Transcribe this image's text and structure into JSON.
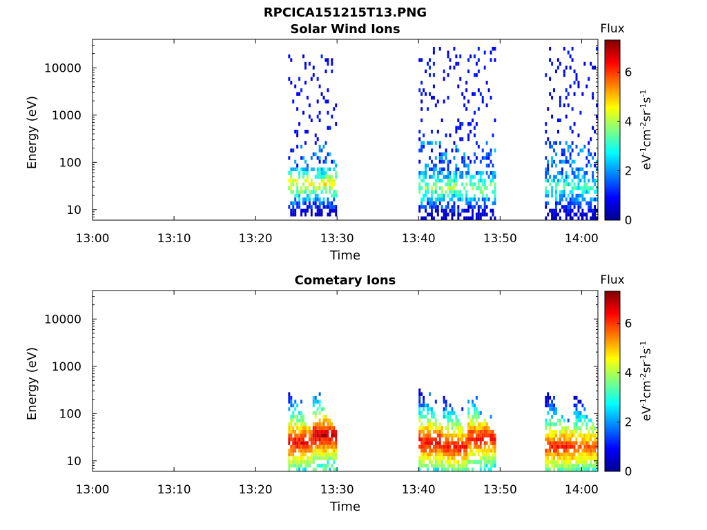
{
  "figure": {
    "title": "RPCICA151215T13.PNG"
  },
  "chart_data": [
    {
      "type": "heatmap",
      "title": "Solar Wind Ions",
      "xlabel": "Time",
      "ylabel": "Energy (eV)",
      "x_ticks": [
        "13:00",
        "13:10",
        "13:20",
        "13:30",
        "13:40",
        "13:50",
        "14:00"
      ],
      "x_range_minutes": [
        0,
        62
      ],
      "y_scale": "log",
      "y_range": [
        6,
        40000
      ],
      "y_ticks": [
        10,
        100,
        1000,
        10000
      ],
      "y_tick_labels": [
        "10",
        "100",
        "1000",
        "10000"
      ],
      "colorbar": {
        "label_top": "Flux",
        "unit": "eV-1cm-2sr-1s-1",
        "range": [
          0,
          7.3
        ],
        "ticks": [
          0,
          2,
          4,
          6
        ],
        "colormap": "jet"
      },
      "bursts": [
        {
          "start_min": 24.0,
          "end_min": 30.0,
          "peak_energy_eV": 35,
          "peak_level": 4.6,
          "high_tail_eV": 20000
        },
        {
          "start_min": 40.0,
          "end_min": 49.5,
          "peak_energy_eV": 30,
          "peak_level": 3.8,
          "high_tail_eV": 30000
        },
        {
          "start_min": 55.5,
          "end_min": 62.0,
          "peak_energy_eV": 30,
          "peak_level": 3.2,
          "high_tail_eV": 30000
        }
      ]
    },
    {
      "type": "heatmap",
      "title": "Cometary Ions",
      "xlabel": "Time",
      "ylabel": "Energy (eV)",
      "x_ticks": [
        "13:00",
        "13:10",
        "13:20",
        "13:30",
        "13:40",
        "13:50",
        "14:00"
      ],
      "x_range_minutes": [
        0,
        62
      ],
      "y_scale": "log",
      "y_range": [
        6,
        40000
      ],
      "y_ticks": [
        10,
        100,
        1000,
        10000
      ],
      "y_tick_labels": [
        "10",
        "100",
        "1000",
        "10000"
      ],
      "colorbar": {
        "label_top": "Flux",
        "unit": "eV-1cm-2sr-1s-1",
        "range": [
          0,
          7.3
        ],
        "ticks": [
          0,
          2,
          4,
          6
        ],
        "colormap": "jet"
      },
      "bursts": [
        {
          "start_min": 24.0,
          "end_min": 27.0,
          "peak_energy_eV": 25,
          "peak_level": 6.5,
          "high_tail_eV": 300
        },
        {
          "start_min": 27.0,
          "end_min": 30.0,
          "peak_energy_eV": 35,
          "peak_level": 6.8,
          "high_tail_eV": 300
        },
        {
          "start_min": 40.0,
          "end_min": 43.0,
          "peak_energy_eV": 25,
          "peak_level": 6.5,
          "high_tail_eV": 350
        },
        {
          "start_min": 43.0,
          "end_min": 46.0,
          "peak_energy_eV": 20,
          "peak_level": 6.3,
          "high_tail_eV": 250
        },
        {
          "start_min": 46.0,
          "end_min": 49.5,
          "peak_energy_eV": 30,
          "peak_level": 6.4,
          "high_tail_eV": 250
        },
        {
          "start_min": 55.5,
          "end_min": 59.0,
          "peak_energy_eV": 20,
          "peak_level": 6.2,
          "high_tail_eV": 300
        },
        {
          "start_min": 59.0,
          "end_min": 62.0,
          "peak_energy_eV": 20,
          "peak_level": 5.8,
          "high_tail_eV": 300
        }
      ]
    }
  ]
}
